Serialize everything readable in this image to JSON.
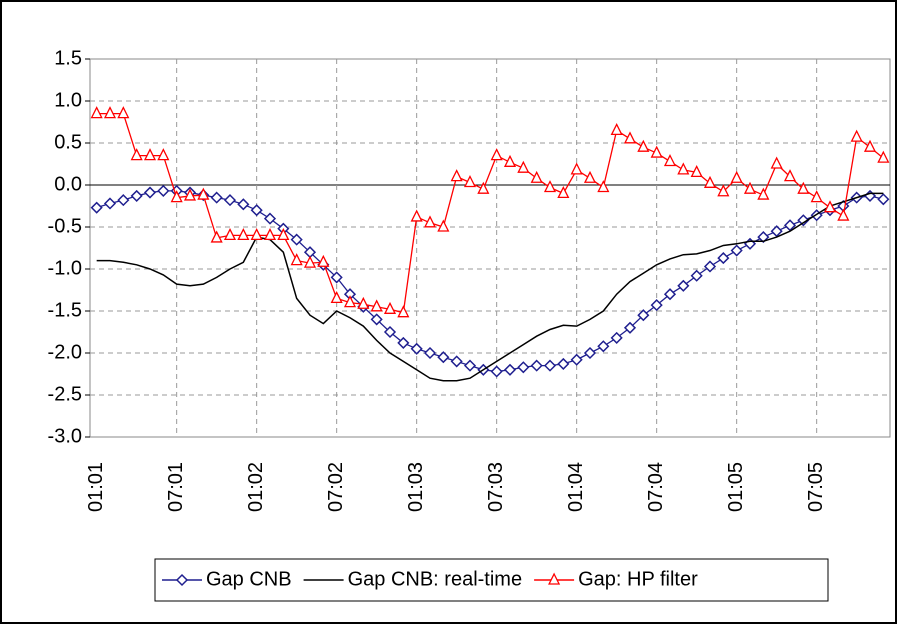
{
  "chart_data": {
    "type": "line",
    "categories": [
      "01:01",
      null,
      null,
      null,
      null,
      null,
      "07:01",
      null,
      null,
      null,
      null,
      null,
      "01:02",
      null,
      null,
      null,
      null,
      null,
      "07:02",
      null,
      null,
      null,
      null,
      null,
      "01:03",
      null,
      null,
      null,
      null,
      null,
      "07:03",
      null,
      null,
      null,
      null,
      null,
      "01:04",
      null,
      null,
      null,
      null,
      null,
      "07:04",
      null,
      null,
      null,
      null,
      null,
      "01:05",
      null,
      null,
      null,
      null,
      null,
      "07:05",
      null,
      null,
      null,
      null,
      null
    ],
    "series": [
      {
        "name": "Gap CNB",
        "color": "#1f1f8f",
        "marker": "diamond",
        "values": [
          -0.27,
          -0.22,
          -0.18,
          -0.13,
          -0.09,
          -0.07,
          -0.07,
          -0.09,
          -0.12,
          -0.15,
          -0.18,
          -0.23,
          -0.3,
          -0.4,
          -0.52,
          -0.65,
          -0.8,
          -0.95,
          -1.1,
          -1.3,
          -1.45,
          -1.6,
          -1.75,
          -1.88,
          -1.95,
          -2.0,
          -2.05,
          -2.1,
          -2.15,
          -2.2,
          -2.22,
          -2.2,
          -2.17,
          -2.15,
          -2.15,
          -2.13,
          -2.08,
          -2.0,
          -1.92,
          -1.82,
          -1.7,
          -1.55,
          -1.43,
          -1.3,
          -1.2,
          -1.08,
          -0.97,
          -0.87,
          -0.78,
          -0.7,
          -0.62,
          -0.55,
          -0.48,
          -0.42,
          -0.36,
          -0.3,
          -0.25,
          -0.15,
          -0.13,
          -0.17
        ]
      },
      {
        "name": "Gap CNB: real-time",
        "color": "#000000",
        "marker": "none",
        "values": [
          -0.9,
          -0.9,
          -0.92,
          -0.95,
          -1.0,
          -1.07,
          -1.18,
          -1.2,
          -1.18,
          -1.1,
          -1.0,
          -0.92,
          -0.62,
          -0.65,
          -0.8,
          -1.35,
          -1.55,
          -1.65,
          -1.5,
          -1.58,
          -1.68,
          -1.85,
          -2.0,
          -2.1,
          -2.2,
          -2.3,
          -2.33,
          -2.33,
          -2.3,
          -2.2,
          -2.1,
          -2.0,
          -1.9,
          -1.8,
          -1.72,
          -1.67,
          -1.68,
          -1.6,
          -1.5,
          -1.3,
          -1.15,
          -1.05,
          -0.95,
          -0.88,
          -0.83,
          -0.82,
          -0.78,
          -0.72,
          -0.7,
          -0.67,
          -0.67,
          -0.62,
          -0.55,
          -0.45,
          -0.35,
          -0.25,
          -0.2,
          -0.15,
          -0.1,
          -0.1
        ]
      },
      {
        "name": "Gap: HP filter",
        "color": "#ff0000",
        "marker": "triangle",
        "values": [
          0.85,
          0.85,
          0.85,
          0.35,
          0.35,
          0.35,
          -0.15,
          -0.13,
          -0.12,
          -0.63,
          -0.6,
          -0.6,
          -0.6,
          -0.6,
          -0.6,
          -0.9,
          -0.93,
          -0.92,
          -1.35,
          -1.4,
          -1.42,
          -1.45,
          -1.48,
          -1.52,
          -0.38,
          -0.45,
          -0.5,
          0.1,
          0.03,
          -0.05,
          0.35,
          0.27,
          0.2,
          0.08,
          -0.03,
          -0.1,
          0.18,
          0.08,
          -0.03,
          0.65,
          0.55,
          0.45,
          0.38,
          0.28,
          0.18,
          0.15,
          0.02,
          -0.08,
          0.08,
          -0.05,
          -0.12,
          0.25,
          0.1,
          -0.05,
          -0.15,
          -0.27,
          -0.37,
          0.57,
          0.45,
          0.32
        ]
      }
    ],
    "ylim": [
      -3,
      1.5
    ],
    "yticks": [
      1.5,
      {
        "value": 1,
        "label": "1.0"
      },
      0.5,
      {
        "value": 0,
        "label": "0.0"
      },
      -0.5,
      {
        "value": -1,
        "label": "-1.0"
      },
      -1.5,
      {
        "value": -2,
        "label": "-2.0"
      },
      -2.5,
      {
        "value": -3,
        "label": "-3.0"
      }
    ],
    "grid": true
  }
}
